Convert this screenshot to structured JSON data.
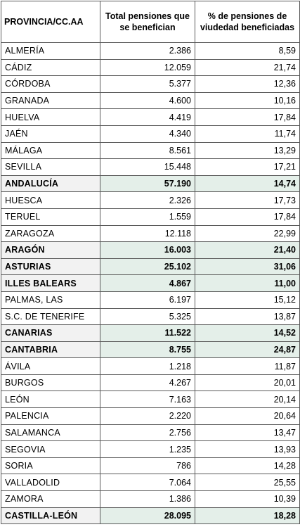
{
  "headers": {
    "provincia": "PROVINCIA/CC.AA",
    "total": "Total pensiones que se benefician",
    "porcentaje": "% de pensiones de viudedad beneficiadas"
  },
  "rows": [
    {
      "name": "ALMERÍA",
      "total": "2.386",
      "pct": "8,59",
      "is_total": false
    },
    {
      "name": "CÁDIZ",
      "total": "12.059",
      "pct": "21,74",
      "is_total": false
    },
    {
      "name": "CÓRDOBA",
      "total": "5.377",
      "pct": "12,36",
      "is_total": false
    },
    {
      "name": "GRANADA",
      "total": "4.600",
      "pct": "10,16",
      "is_total": false
    },
    {
      "name": "HUELVA",
      "total": "4.419",
      "pct": "17,84",
      "is_total": false
    },
    {
      "name": "JAÉN",
      "total": "4.340",
      "pct": "11,74",
      "is_total": false
    },
    {
      "name": "MÁLAGA",
      "total": "8.561",
      "pct": "13,29",
      "is_total": false
    },
    {
      "name": "SEVILLA",
      "total": "15.448",
      "pct": "17,21",
      "is_total": false
    },
    {
      "name": "ANDALUCÍA",
      "total": "57.190",
      "pct": "14,74",
      "is_total": true
    },
    {
      "name": "HUESCA",
      "total": "2.326",
      "pct": "17,73",
      "is_total": false
    },
    {
      "name": "TERUEL",
      "total": "1.559",
      "pct": "17,84",
      "is_total": false
    },
    {
      "name": "ZARAGOZA",
      "total": "12.118",
      "pct": "22,99",
      "is_total": false
    },
    {
      "name": "ARAGÓN",
      "total": "16.003",
      "pct": "21,40",
      "is_total": true
    },
    {
      "name": "ASTURIAS",
      "total": "25.102",
      "pct": "31,06",
      "is_total": true
    },
    {
      "name": "ILLES BALEARS",
      "total": "4.867",
      "pct": "11,00",
      "is_total": true
    },
    {
      "name": "PALMAS, LAS",
      "total": "6.197",
      "pct": "15,12",
      "is_total": false
    },
    {
      "name": "S.C. DE TENERIFE",
      "total": "5.325",
      "pct": "13,87",
      "is_total": false
    },
    {
      "name": "CANARIAS",
      "total": "11.522",
      "pct": "14,52",
      "is_total": true
    },
    {
      "name": "CANTABRIA",
      "total": "8.755",
      "pct": "24,87",
      "is_total": true
    },
    {
      "name": "ÁVILA",
      "total": "1.218",
      "pct": "11,87",
      "is_total": false
    },
    {
      "name": "BURGOS",
      "total": "4.267",
      "pct": "20,01",
      "is_total": false
    },
    {
      "name": "LEÓN",
      "total": "7.163",
      "pct": "20,14",
      "is_total": false
    },
    {
      "name": "PALENCIA",
      "total": "2.220",
      "pct": "20,64",
      "is_total": false
    },
    {
      "name": "SALAMANCA",
      "total": "2.756",
      "pct": "13,47",
      "is_total": false
    },
    {
      "name": "SEGOVIA",
      "total": "1.235",
      "pct": "13,93",
      "is_total": false
    },
    {
      "name": "SORIA",
      "total": "786",
      "pct": "14,28",
      "is_total": false
    },
    {
      "name": "VALLADOLID",
      "total": "7.064",
      "pct": "25,55",
      "is_total": false
    },
    {
      "name": "ZAMORA",
      "total": "1.386",
      "pct": "10,39",
      "is_total": false
    },
    {
      "name": "CASTILLA-LEÓN",
      "total": "28.095",
      "pct": "18,28",
      "is_total": true
    }
  ]
}
